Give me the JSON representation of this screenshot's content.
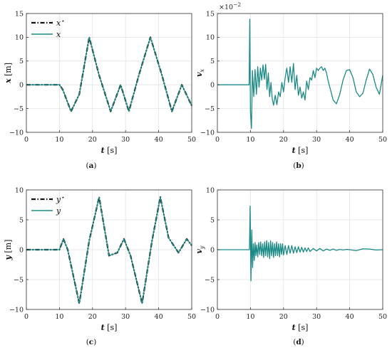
{
  "colors": {
    "teal": "#1a8a86",
    "ref": "#111111"
  },
  "chart_data": [
    {
      "type": "line",
      "caption": "(a)",
      "xlabel": "t [s]",
      "ylabel": "x [m]",
      "xlim": [
        0,
        50
      ],
      "ylim": [
        -10,
        15
      ],
      "xticks": [
        0,
        10,
        20,
        30,
        40,
        50
      ],
      "xticklabels": [
        "0",
        "10",
        "20",
        "30",
        "40",
        "50"
      ],
      "yticks": [
        -10,
        -5,
        0,
        5,
        10,
        15
      ],
      "yticklabels": [
        "−10",
        "−5",
        "0",
        "5",
        "10",
        "15"
      ],
      "grid": true,
      "legend_position": "top-left",
      "series": [
        {
          "name": "x*",
          "style": "dash-dot",
          "color": "#111111",
          "x": [
            0,
            10,
            11,
            13.5,
            16,
            19,
            22,
            25.5,
            28.5,
            31,
            34,
            37.5,
            41,
            44,
            47,
            50
          ],
          "y": [
            0,
            0,
            -1,
            -5.6,
            -2,
            10,
            2,
            -5.6,
            0,
            -5.6,
            2,
            10,
            2,
            -5.6,
            0,
            -4.4
          ]
        },
        {
          "name": "x",
          "style": "solid",
          "color": "#1a8a86",
          "x": [
            0,
            10,
            11,
            13.5,
            16,
            19,
            22,
            25.5,
            28.5,
            31,
            34,
            37.5,
            41,
            44,
            47,
            50
          ],
          "y": [
            0,
            0,
            -1,
            -5.6,
            -2,
            10,
            2,
            -5.6,
            0,
            -5.6,
            2,
            10,
            2,
            -5.6,
            0,
            -4.4
          ]
        }
      ]
    },
    {
      "type": "line",
      "caption": "(b)",
      "xlabel": "t [s]",
      "ylabel": "v_x",
      "multiplier": "×10^−2",
      "xlim": [
        0,
        50
      ],
      "ylim": [
        -10,
        15
      ],
      "xticks": [
        0,
        10,
        20,
        30,
        40,
        50
      ],
      "xticklabels": [
        "0",
        "10",
        "20",
        "30",
        "40",
        "50"
      ],
      "yticks": [
        -10,
        -5,
        0,
        5,
        10,
        15
      ],
      "yticklabels": [
        "−10",
        "−5",
        "0",
        "5",
        "10",
        "15"
      ],
      "grid": true,
      "series": [
        {
          "style": "solid",
          "color": "#1a8a86",
          "x": [
            0,
            9.6,
            9.8,
            10.0,
            10.3,
            10.6,
            11.0,
            11.4,
            11.8,
            12.2,
            12.6,
            13.0,
            13.4,
            13.8,
            14.2,
            14.6,
            15.0,
            15.4,
            15.8,
            16.2,
            16.6,
            17.0,
            17.5,
            18.0,
            18.5,
            19.0,
            19.5,
            20.0,
            20.5,
            21.0,
            21.5,
            22.0,
            22.5,
            23.0,
            23.5,
            24.0,
            24.5,
            25.0,
            25.5,
            26.0,
            26.5,
            27.0,
            27.5,
            28.0,
            28.5,
            29.0,
            29.5,
            30.0,
            30.5,
            31.0,
            31.5,
            32.0,
            32.5,
            33.0,
            33.5,
            34.0,
            35.0,
            36.0,
            37.0,
            38.0,
            39.0,
            40.0,
            41.0,
            42.0,
            43.0,
            44.0,
            45.0,
            46.0,
            47.0,
            48.0,
            49.0,
            50.0
          ],
          "y": [
            0,
            0,
            13.8,
            -5.5,
            -9.2,
            3.0,
            -2.5,
            3.2,
            -2.0,
            3.8,
            -0.5,
            3.5,
            1.0,
            4.2,
            1.2,
            4.3,
            -1.0,
            2.5,
            -2.5,
            0.5,
            -3.0,
            -4.3,
            -2.2,
            -4.2,
            -1.5,
            -2.5,
            0.5,
            -1.5,
            1.5,
            3.5,
            0.5,
            3.8,
            0.5,
            4.5,
            -1.0,
            2.0,
            -2.2,
            -0.5,
            -2.8,
            -1.5,
            -3.2,
            0.8,
            -1.0,
            1.5,
            1.0,
            3.0,
            1.5,
            3.5,
            3.0,
            3.5,
            3.8,
            3.0,
            3.5,
            2.5,
            0.8,
            -0.5,
            -3.2,
            -4.0,
            -2.0,
            1.0,
            3.0,
            3.2,
            1.5,
            -1.5,
            -2.5,
            -1.8,
            1.0,
            3.3,
            2.2,
            -0.5,
            -2.0,
            2.0
          ]
        }
      ]
    },
    {
      "type": "line",
      "caption": "(c)",
      "xlabel": "t [s]",
      "ylabel": "y [m]",
      "xlim": [
        0,
        50
      ],
      "ylim": [
        -10,
        10
      ],
      "xticks": [
        0,
        10,
        20,
        30,
        40,
        50
      ],
      "xticklabels": [
        "0",
        "10",
        "20",
        "30",
        "40",
        "50"
      ],
      "yticks": [
        -10,
        -5,
        0,
        5,
        10
      ],
      "yticklabels": [
        "−10",
        "−5",
        "0",
        "5",
        "10"
      ],
      "grid": true,
      "legend_position": "top-left",
      "series": [
        {
          "name": "y*",
          "style": "dash-dot",
          "color": "#111111",
          "x": [
            0,
            10,
            11.2,
            12.5,
            16,
            19,
            22,
            25,
            27.5,
            29.5,
            31.5,
            35,
            38,
            40.5,
            43,
            46,
            48.5,
            50
          ],
          "y": [
            0,
            0,
            1.8,
            0,
            -9,
            1.5,
            8.8,
            -1,
            -0.5,
            1.8,
            -1,
            -9,
            1.5,
            8.8,
            2,
            -0.5,
            1.8,
            0.7
          ]
        },
        {
          "name": "y",
          "style": "solid",
          "color": "#1a8a86",
          "x": [
            0,
            10,
            11.2,
            12.5,
            16,
            19,
            22,
            25,
            27.5,
            29.5,
            31.5,
            35,
            38,
            40.5,
            43,
            46,
            48.5,
            50
          ],
          "y": [
            0,
            0,
            1.8,
            0,
            -9,
            1.5,
            8.8,
            -1,
            -0.5,
            1.8,
            -1,
            -9,
            1.5,
            8.8,
            2,
            -0.5,
            1.8,
            0.7
          ]
        }
      ]
    },
    {
      "type": "line",
      "caption": "(d)",
      "xlabel": "t [s]",
      "ylabel": "v_y",
      "xlim": [
        0,
        50
      ],
      "ylim": [
        -10,
        10
      ],
      "xticks": [
        0,
        10,
        20,
        30,
        40,
        50
      ],
      "xticklabels": [
        "0",
        "10",
        "20",
        "30",
        "40",
        "50"
      ],
      "yticks": [
        -10,
        -5,
        0,
        5,
        10
      ],
      "yticklabels": [
        "−10",
        "−5",
        "0",
        "5",
        "10"
      ],
      "grid": true,
      "series": [
        {
          "style": "solid",
          "color": "#1a8a86",
          "x": [
            0,
            9.7,
            9.9,
            10.15,
            10.4,
            10.65,
            10.9,
            11.15,
            11.4,
            11.65,
            11.9,
            12.2,
            12.5,
            12.8,
            13.1,
            13.4,
            13.7,
            14.0,
            14.3,
            14.6,
            14.9,
            15.2,
            15.5,
            15.8,
            16.1,
            16.4,
            16.7,
            17.0,
            17.3,
            17.6,
            17.9,
            18.2,
            18.5,
            18.8,
            19.1,
            19.4,
            19.7,
            20.0,
            20.5,
            21.0,
            21.5,
            22.0,
            22.5,
            23.0,
            23.5,
            24.0,
            24.5,
            25.0,
            25.5,
            26.0,
            26.5,
            27.0,
            27.5,
            28.0,
            29.0,
            30.0,
            31.0,
            32.0,
            33.0,
            34.0,
            35.0,
            36.0,
            37.0,
            38.0,
            39.0,
            40.0,
            42.0,
            44.0,
            46.0,
            48.0,
            50.0
          ],
          "y": [
            0,
            0,
            7.3,
            -5.2,
            3.3,
            -3.0,
            1.0,
            -1.8,
            1.2,
            -1.0,
            0.8,
            -1.2,
            1.2,
            -0.8,
            1.3,
            -1.0,
            1.0,
            -1.3,
            1.3,
            -1.0,
            1.5,
            -1.2,
            1.2,
            -1.5,
            1.5,
            -1.0,
            1.2,
            -1.3,
            1.0,
            -1.0,
            1.3,
            -1.0,
            1.0,
            -1.2,
            1.0,
            -0.8,
            1.0,
            -0.9,
            0.7,
            -0.8,
            0.7,
            -0.6,
            0.7,
            -0.6,
            0.5,
            -0.5,
            0.5,
            -0.4,
            0.4,
            -0.4,
            0.3,
            -0.3,
            0.3,
            -0.3,
            0.2,
            -0.2,
            0.2,
            -0.2,
            0.1,
            -0.1,
            0.1,
            -0.1,
            0.05,
            -0.05,
            0.05,
            0,
            -0.15,
            0.15,
            0.1,
            -0.05,
            0
          ]
        }
      ]
    }
  ]
}
